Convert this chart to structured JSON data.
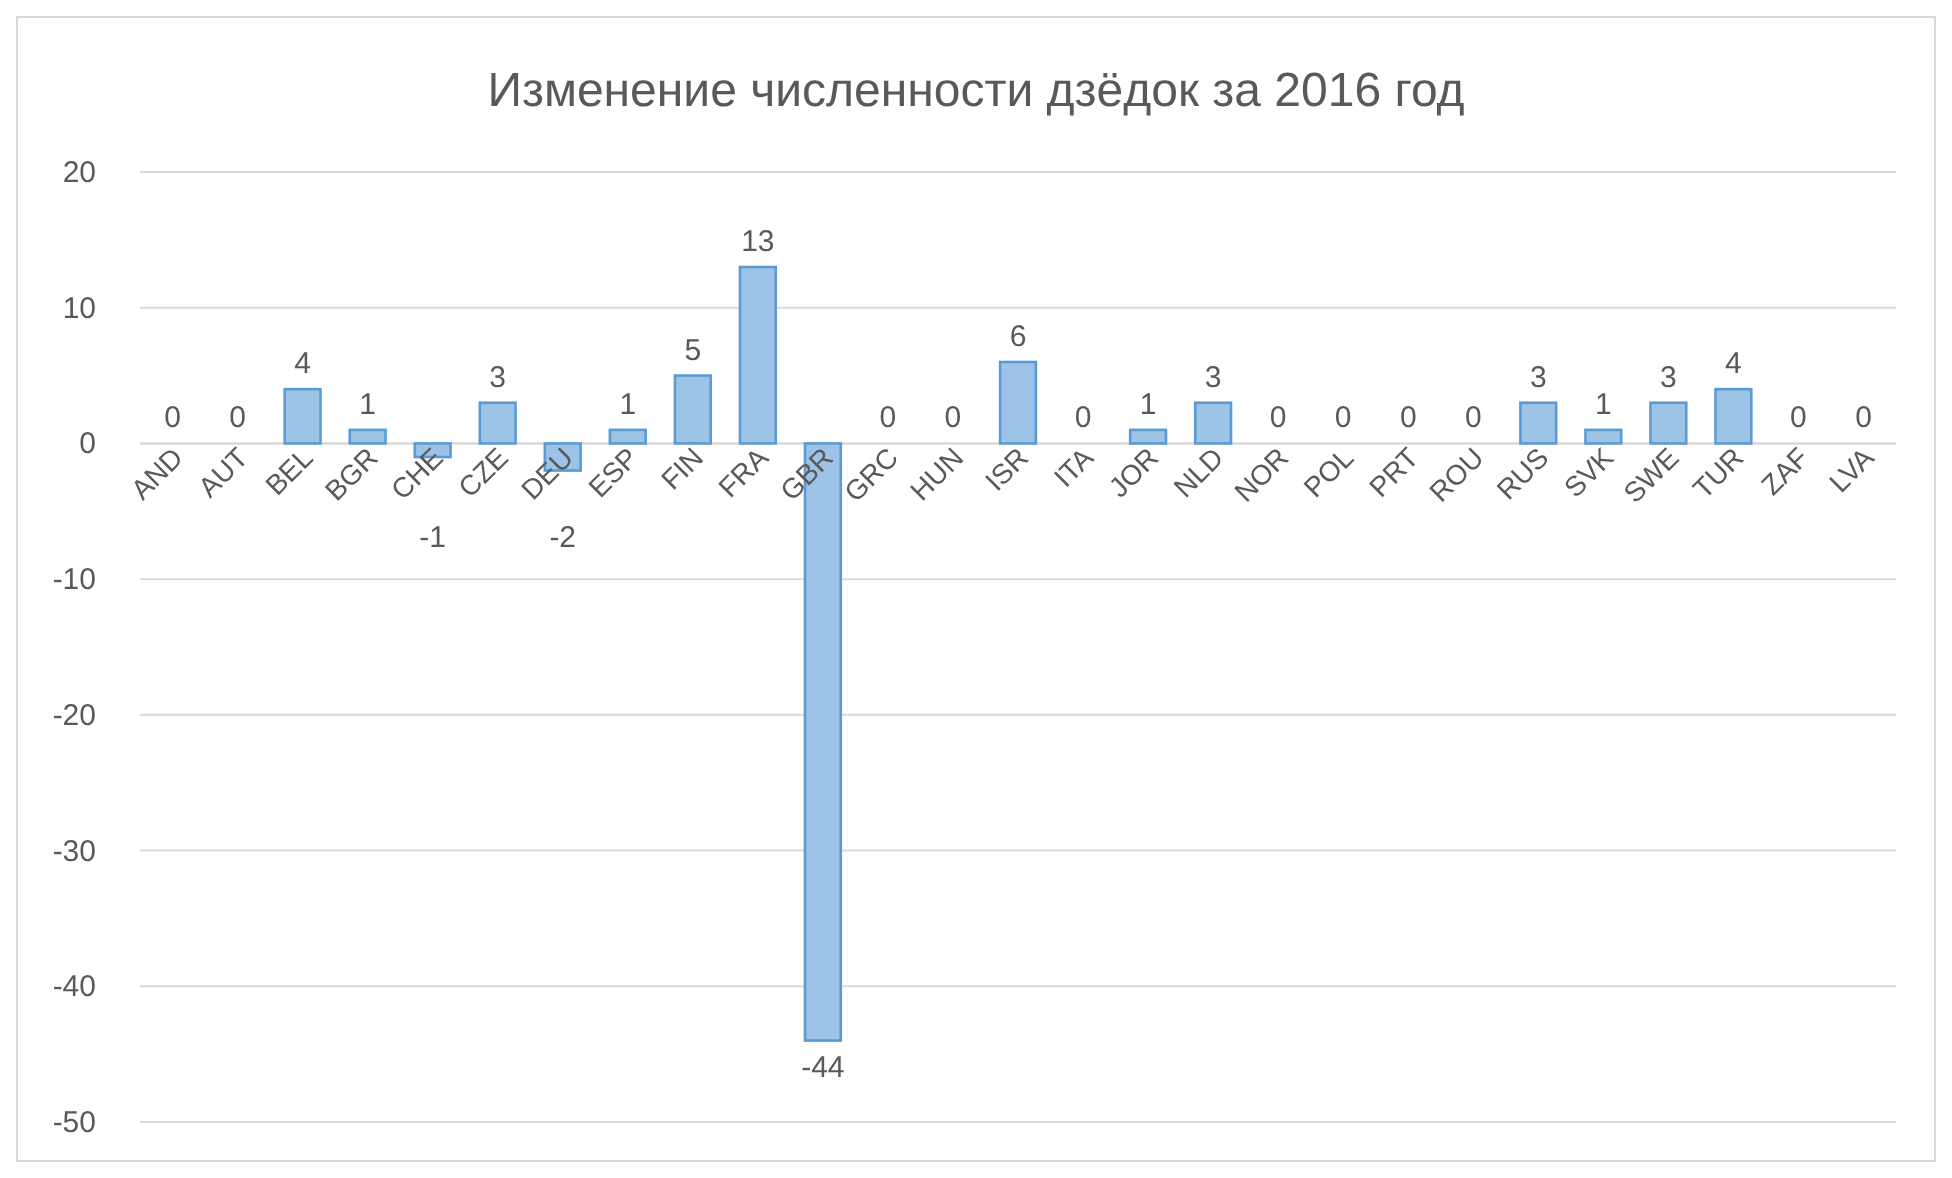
{
  "chart_data": {
    "type": "bar",
    "title": "Изменение численности дзёдок за 2016 год",
    "categories": [
      "AND",
      "AUT",
      "BEL",
      "BGR",
      "CHE",
      "CZE",
      "DEU",
      "ESP",
      "FIN",
      "FRA",
      "GBR",
      "GRC",
      "HUN",
      "ISR",
      "ITA",
      "JOR",
      "NLD",
      "NOR",
      "POL",
      "PRT",
      "ROU",
      "RUS",
      "SVK",
      "SWE",
      "TUR",
      "ZAF",
      "LVA"
    ],
    "values": [
      0,
      0,
      4,
      1,
      -1,
      3,
      -2,
      1,
      5,
      13,
      -44,
      0,
      0,
      6,
      0,
      1,
      3,
      0,
      0,
      0,
      0,
      3,
      1,
      3,
      4,
      0,
      0
    ],
    "color": "#9dc3e6",
    "ylim": [
      -50,
      20
    ],
    "yticks": [
      -50,
      -40,
      -30,
      -20,
      -10,
      0,
      10,
      20
    ],
    "grid": "y",
    "data_labels": true
  }
}
